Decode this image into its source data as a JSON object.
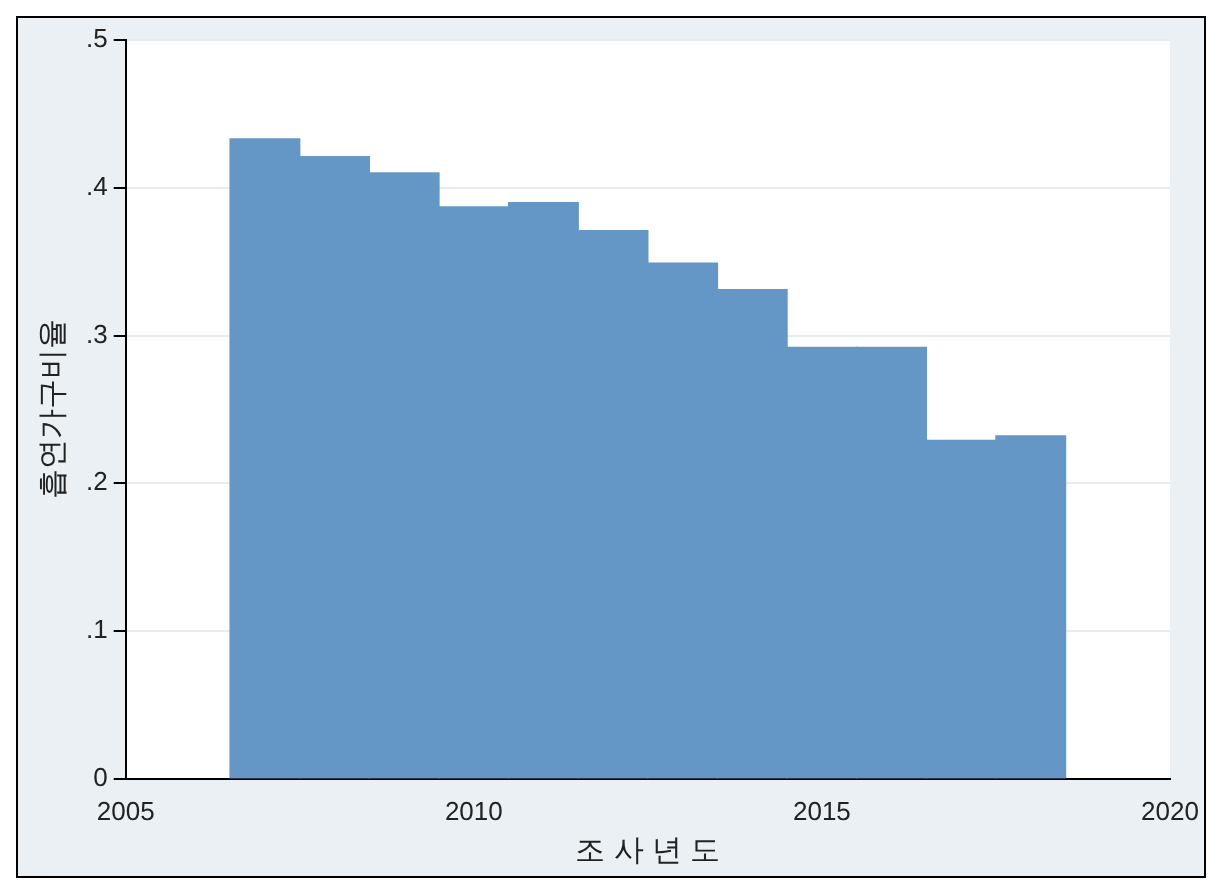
{
  "chart_data": {
    "type": "bar",
    "xlabel": "조 사 년 도",
    "ylabel": "흡연가구비율",
    "x": [
      2007,
      2008,
      2009,
      2010,
      2011,
      2012,
      2013,
      2014,
      2015,
      2016,
      2017,
      2018
    ],
    "values": [
      0.433,
      0.421,
      0.41,
      0.387,
      0.39,
      0.371,
      0.349,
      0.331,
      0.292,
      0.292,
      0.229,
      0.232
    ],
    "color": "#6497c6",
    "xlim": [
      2005,
      2020
    ],
    "xticks": [
      2005,
      2010,
      2015,
      2020
    ],
    "ylim": [
      0,
      0.5
    ],
    "yticks": [
      0,
      {
        "value": 0.1,
        "label": ".1"
      },
      {
        "value": 0.2,
        "label": ".2"
      },
      {
        "value": 0.3,
        "label": ".3"
      },
      {
        "value": 0.4,
        "label": ".4"
      },
      {
        "value": 0.5,
        "label": ".5"
      }
    ],
    "grid": "y",
    "legend": false
  }
}
